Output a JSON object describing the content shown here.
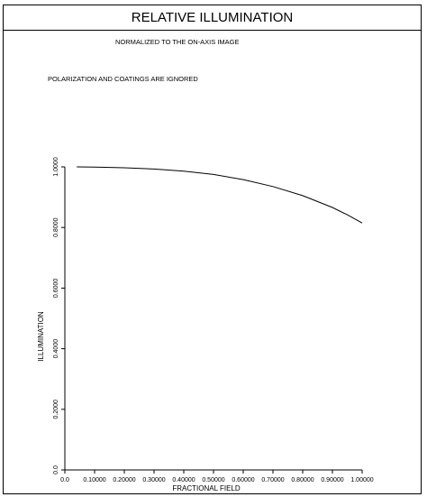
{
  "header": {
    "title": "RELATIVE ILLUMINATION",
    "subtitle": "NORMALIZED TO THE ON-AXIS IMAGE",
    "note": "POLARIZATION AND COATINGS ARE IGNORED"
  },
  "chart_data": {
    "type": "line",
    "title": "RELATIVE ILLUMINATION",
    "subtitle": "NORMALIZED TO THE ON-AXIS IMAGE",
    "xlabel": "FRACTIONAL FIELD",
    "ylabel": "ILLUMINATION",
    "xlim": [
      0,
      1
    ],
    "ylim": [
      0,
      1
    ],
    "x_ticks": [
      "0.0",
      "0.10000",
      "0.20000",
      "0.30000",
      "0.40000",
      "0.50000",
      "0.60000",
      "0.70000",
      "0.80000",
      "0.90000",
      "1.00000"
    ],
    "y_ticks": [
      "0.0",
      "0.2000",
      "0.4000",
      "0.6000",
      "0.8000",
      "1.0000"
    ],
    "grid": false,
    "series": [
      {
        "x": [
          0.04,
          0.1,
          0.2,
          0.3,
          0.4,
          0.5,
          0.6,
          0.7,
          0.8,
          0.9,
          0.95,
          1.0
        ],
        "y": [
          1.0,
          0.999,
          0.997,
          0.993,
          0.986,
          0.975,
          0.958,
          0.935,
          0.905,
          0.866,
          0.842,
          0.815
        ]
      }
    ]
  }
}
